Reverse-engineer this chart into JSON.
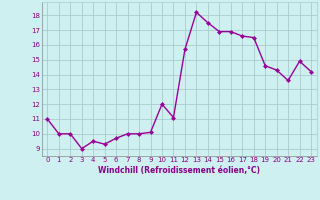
{
  "x": [
    0,
    1,
    2,
    3,
    4,
    5,
    6,
    7,
    8,
    9,
    10,
    11,
    12,
    13,
    14,
    15,
    16,
    17,
    18,
    19,
    20,
    21,
    22,
    23
  ],
  "y": [
    11.0,
    10.0,
    10.0,
    9.0,
    9.5,
    9.3,
    9.7,
    10.0,
    10.0,
    10.1,
    12.0,
    11.1,
    15.7,
    18.2,
    17.5,
    16.9,
    16.9,
    16.6,
    16.5,
    14.6,
    14.3,
    13.6,
    14.9,
    14.2
  ],
  "line_color": "#990099",
  "marker": "D",
  "marker_size": 2,
  "line_width": 1.0,
  "bg_color": "#cff0f0",
  "grid_color": "#aacccc",
  "xlabel": "Windchill (Refroidissement éolien,°C)",
  "xlabel_color": "#880088",
  "tick_color": "#880088",
  "ylim": [
    8.5,
    18.9
  ],
  "xlim": [
    -0.5,
    23.5
  ],
  "yticks": [
    9,
    10,
    11,
    12,
    13,
    14,
    15,
    16,
    17,
    18
  ],
  "xticks": [
    0,
    1,
    2,
    3,
    4,
    5,
    6,
    7,
    8,
    9,
    10,
    11,
    12,
    13,
    14,
    15,
    16,
    17,
    18,
    19,
    20,
    21,
    22,
    23
  ]
}
